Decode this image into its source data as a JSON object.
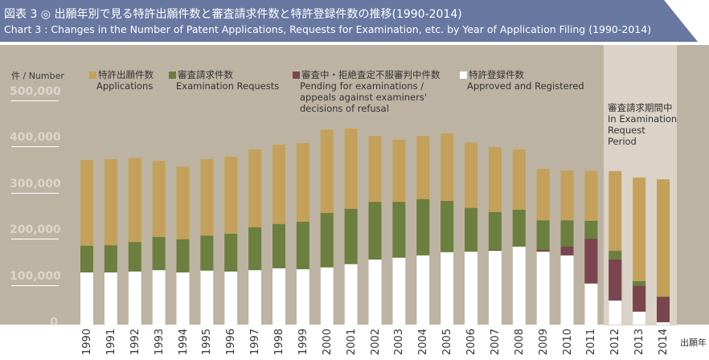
{
  "header": {
    "title_ja": "図表 3 ◎ 出願年別で見る特許出願件数と審査請求件数と特許登録件数の推移(1990-2014)",
    "title_en": "Chart 3 : Changes in the Number of Patent Applications, Requests for Examination, etc. by Year of Application Filing (1990-2014)"
  },
  "chart_data": {
    "type": "bar",
    "ylabel": "件 / Number",
    "xlabel": "出願年",
    "ylim": [
      0,
      500000
    ],
    "yticks": [
      "500,000",
      "400,000",
      "300,000",
      "200,000",
      "100,000",
      "0"
    ],
    "categories": [
      "1990",
      "1991",
      "1992",
      "1993",
      "1994",
      "1995",
      "1996",
      "1997",
      "1998",
      "1999",
      "2000",
      "2001",
      "2002",
      "2003",
      "2004",
      "2005",
      "2006",
      "2007",
      "2008",
      "2009",
      "2010",
      "2011",
      "2012",
      "2013",
      "2014"
    ],
    "series": [
      {
        "name": "特許出願件数 Applications",
        "legend_ja": "特許出願件数",
        "legend_en": "Applications",
        "color": "#c4a15a",
        "values": [
          371000,
          373000,
          375000,
          369000,
          357000,
          373000,
          378000,
          394000,
          404000,
          408000,
          437000,
          439000,
          423000,
          415000,
          423000,
          429000,
          409000,
          399000,
          394000,
          352000,
          348000,
          347000,
          347000,
          333000,
          329000
        ]
      },
      {
        "name": "審査請求件数 Examination Requests",
        "legend_ja": "審査請求件数",
        "legend_en": "Examination Requests",
        "color": "#6b7f3f",
        "values": [
          185000,
          186000,
          193000,
          204000,
          199000,
          207000,
          211000,
          225000,
          232000,
          237000,
          256000,
          265000,
          280000,
          280000,
          286000,
          282000,
          267000,
          258000,
          263000,
          240000,
          240000,
          239000,
          174000,
          108000,
          75000
        ]
      },
      {
        "name": "審査中・拒絶査定不服審判中件数 Pending for examinations / appeals against examiners' decisions of refusal",
        "legend_ja": "審査中・拒絶査定不服審判中件数",
        "legend_en_1": "Pending for examinations /",
        "legend_en_2": "appeals against examiners'",
        "legend_en_3": "decisions of refusal",
        "color": "#7b454f",
        "values": [
          0,
          0,
          0,
          0,
          0,
          0,
          0,
          0,
          0,
          0,
          0,
          0,
          0,
          0,
          0,
          0,
          0,
          2000,
          0,
          4000,
          19000,
          97000,
          89000,
          56000,
          54000
        ]
      },
      {
        "name": "特許登録件数 Approved and Registered",
        "legend_ja": "特許登録件数",
        "legend_en": "Approved and Registered",
        "color": "#ffffff",
        "values": [
          127000,
          127000,
          129000,
          132000,
          127000,
          131000,
          129000,
          132000,
          136000,
          134000,
          138000,
          145000,
          155000,
          159000,
          164000,
          171000,
          172000,
          174000,
          183000,
          172000,
          164000,
          103000,
          66000,
          42000,
          19000
        ]
      }
    ],
    "annotation": {
      "ja": "審査請求期間中",
      "en_1": "In Examination",
      "en_2": "Request",
      "en_3": "Period",
      "years": [
        "2012",
        "2013",
        "2014"
      ]
    },
    "grid": false,
    "legend_placement": "top"
  }
}
